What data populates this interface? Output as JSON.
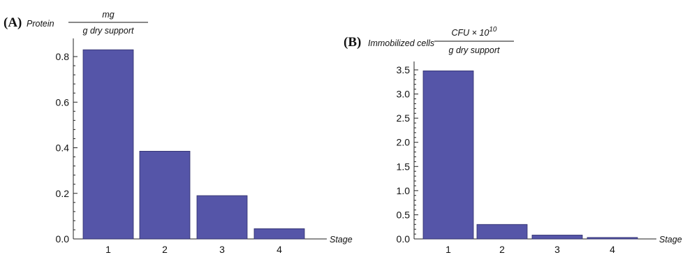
{
  "chart_data": [
    {
      "type": "bar",
      "panel_label": "(A)",
      "ylabel": "Protein",
      "ylabel_fraction": {
        "numerator": "mg",
        "denominator": "g dry support"
      },
      "xlabel": "Stage",
      "categories": [
        "1",
        "2",
        "3",
        "4"
      ],
      "values": [
        0.83,
        0.385,
        0.19,
        0.045
      ],
      "ylim": [
        0,
        0.9
      ],
      "yticks": [
        0.0,
        0.2,
        0.4,
        0.6,
        0.8
      ],
      "ytick_labels": [
        "0.0",
        "0.2",
        "0.4",
        "0.6",
        "0.8"
      ],
      "grid": false,
      "bar_color": "#5555a8"
    },
    {
      "type": "bar",
      "panel_label": "(B)",
      "ylabel": "Immobilized cells",
      "ylabel_fraction": {
        "numerator": "CFU × 10",
        "numerator_exponent": "10",
        "denominator": "g dry support"
      },
      "xlabel": "Stage",
      "categories": [
        "1",
        "2",
        "3",
        "4"
      ],
      "values": [
        3.48,
        0.3,
        0.08,
        0.03
      ],
      "ylim": [
        0,
        3.6
      ],
      "yticks": [
        0.0,
        0.5,
        1.0,
        1.5,
        2.0,
        2.5,
        3.0,
        3.5
      ],
      "ytick_labels": [
        "0.0",
        "0.5",
        "1.0",
        "1.5",
        "2.0",
        "2.5",
        "3.0",
        "3.5"
      ],
      "grid": false,
      "bar_color": "#5555a8"
    }
  ]
}
